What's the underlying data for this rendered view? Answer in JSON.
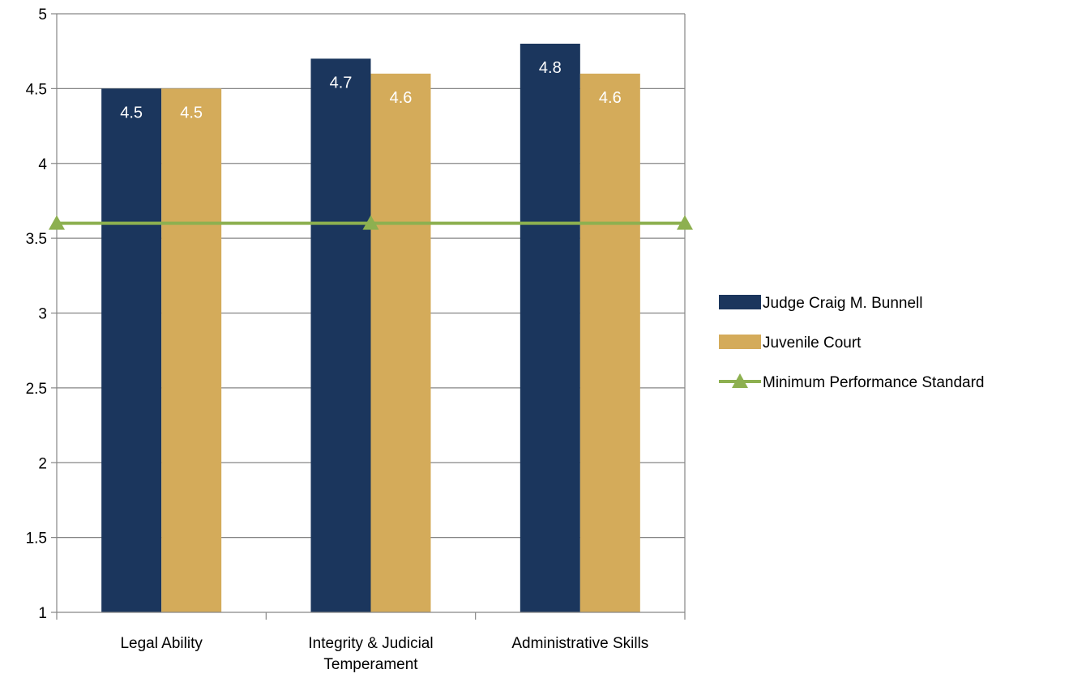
{
  "chart_data": {
    "type": "bar",
    "title": "",
    "xlabel": "",
    "ylabel": "",
    "categories": [
      [
        "Legal Ability"
      ],
      [
        "Integrity & Judicial",
        "Temperament"
      ],
      [
        "Administrative Skills"
      ]
    ],
    "series": [
      {
        "name": "Judge Craig M. Bunnell",
        "kind": "bar",
        "color": "#1b365d",
        "values": [
          4.5,
          4.7,
          4.8
        ],
        "labels": [
          "4.5",
          "4.7",
          "4.8"
        ]
      },
      {
        "name": "Juvenile Court",
        "kind": "bar",
        "color": "#d4ab5a",
        "values": [
          4.5,
          4.6,
          4.6
        ],
        "labels": [
          "4.5",
          "4.6",
          "4.6"
        ]
      },
      {
        "name": "Minimum Performance Standard",
        "kind": "line",
        "marker": "triangle",
        "color": "#8db050",
        "values": [
          3.6,
          3.6,
          3.6
        ]
      }
    ],
    "ylim": [
      1,
      5
    ],
    "yticks": [
      "1",
      "1.5",
      "2",
      "2.5",
      "3",
      "3.5",
      "4",
      "4.5",
      "5"
    ],
    "grid": true,
    "legend": "right",
    "axis_color": "#868686",
    "grid_color": "#868686"
  }
}
